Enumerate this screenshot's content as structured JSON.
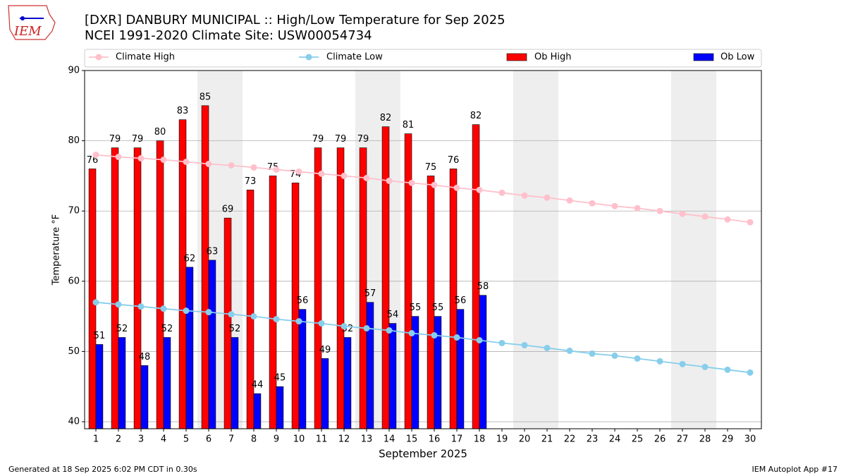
{
  "logo_text": "IEM",
  "footer_left": "Generated at 18 Sep 2025 6:02 PM CDT in 0.30s",
  "footer_right": "IEM Autoplot App #17",
  "chart_data": {
    "type": "bar",
    "title": "[DXR] DANBURY MUNICIPAL :: High/Low Temperature for Sep 2025",
    "subtitle": "NCEI 1991-2020 Climate Site: USW00054734",
    "x_label": "September 2025",
    "y_label": "Temperature °F",
    "x": [
      1,
      2,
      3,
      4,
      5,
      6,
      7,
      8,
      9,
      10,
      11,
      12,
      13,
      14,
      15,
      16,
      17,
      18,
      19,
      20,
      21,
      22,
      23,
      24,
      25,
      26,
      27,
      28,
      29,
      30
    ],
    "xlim": [
      0.5,
      30.5
    ],
    "xticks": [
      1,
      2,
      3,
      4,
      5,
      6,
      7,
      8,
      9,
      10,
      11,
      12,
      13,
      14,
      15,
      16,
      17,
      18,
      19,
      20,
      21,
      22,
      23,
      24,
      25,
      26,
      27,
      28,
      29,
      30
    ],
    "ylim": [
      39,
      90
    ],
    "yticks": [
      40,
      50,
      60,
      70,
      80,
      90
    ],
    "grid": true,
    "shaded_spans": [
      [
        5.5,
        7.5
      ],
      [
        12.5,
        14.5
      ],
      [
        19.5,
        21.5
      ],
      [
        26.5,
        28.5
      ]
    ],
    "series": [
      {
        "name": "Climate High",
        "kind": "line",
        "color": "#ffc0cb",
        "values": [
          78.0,
          77.7,
          77.5,
          77.3,
          77.0,
          76.7,
          76.5,
          76.2,
          75.9,
          75.6,
          75.3,
          75.0,
          74.7,
          74.3,
          74.0,
          73.7,
          73.3,
          73.0,
          72.6,
          72.2,
          71.9,
          71.5,
          71.1,
          70.7,
          70.4,
          70.0,
          69.6,
          69.2,
          68.8,
          68.4
        ]
      },
      {
        "name": "Climate Low",
        "kind": "line",
        "color": "#87ceeb",
        "values": [
          57.0,
          56.7,
          56.4,
          56.1,
          55.8,
          55.6,
          55.3,
          55.0,
          54.6,
          54.3,
          54.0,
          53.6,
          53.3,
          53.0,
          52.6,
          52.3,
          52.0,
          51.6,
          51.2,
          50.9,
          50.5,
          50.1,
          49.7,
          49.4,
          49.0,
          48.6,
          48.2,
          47.8,
          47.4,
          47.0
        ]
      },
      {
        "name": "Ob High",
        "kind": "bar",
        "color": "#ff0000",
        "values": [
          76,
          79,
          79,
          80,
          83,
          85,
          69,
          73,
          75,
          74,
          79,
          79,
          79,
          82,
          81,
          75,
          76,
          82.3,
          null,
          null,
          null,
          null,
          null,
          null,
          null,
          null,
          null,
          null,
          null,
          null
        ],
        "value_labels": [
          "76",
          "79",
          "79",
          "80",
          "83",
          "85",
          "69",
          "73",
          "75",
          "74",
          "79",
          "79",
          "79",
          "82",
          "81",
          "75",
          "76",
          "82",
          null,
          null,
          null,
          null,
          null,
          null,
          null,
          null,
          null,
          null,
          null,
          null
        ]
      },
      {
        "name": "Ob Low",
        "kind": "bar",
        "color": "#0000ff",
        "values": [
          51,
          52,
          48,
          52,
          62,
          63,
          52,
          44,
          45,
          56,
          49,
          52,
          57,
          54,
          55,
          55,
          56,
          58,
          null,
          null,
          null,
          null,
          null,
          null,
          null,
          null,
          null,
          null,
          null,
          null
        ]
      }
    ]
  }
}
